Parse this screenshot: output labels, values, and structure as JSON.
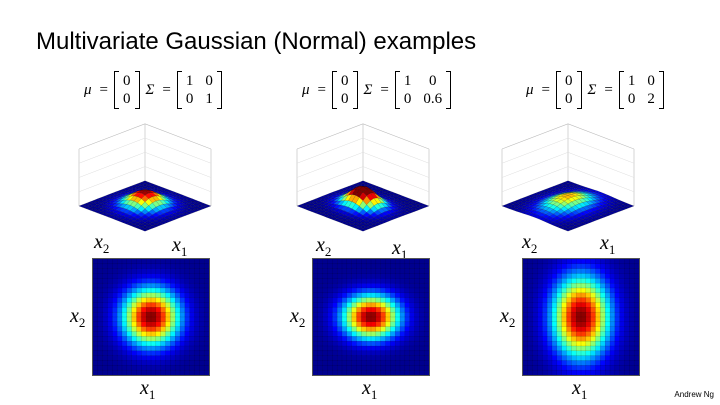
{
  "slide": {
    "title": "Multivariate Gaussian (Normal) examples",
    "credit": "Andrew Ng"
  },
  "axis_labels": {
    "x1": "x",
    "x1_sub": "1",
    "x2": "x",
    "x2_sub": "2"
  },
  "colormap": [
    "#00008f",
    "#0000ff",
    "#0080ff",
    "#00ffff",
    "#80ff80",
    "#ffff00",
    "#ff8000",
    "#ff0000",
    "#800000"
  ],
  "examples": [
    {
      "mu_symbol": "μ",
      "eq": "=",
      "sigma_symbol": "Σ",
      "mu": [
        "0",
        "0"
      ],
      "sigma": [
        [
          "1",
          "0"
        ],
        [
          "0",
          "1"
        ]
      ],
      "sx": 1,
      "sy": 1
    },
    {
      "mu_symbol": "μ",
      "eq": "=",
      "sigma_symbol": "Σ",
      "mu": [
        "0",
        "0"
      ],
      "sigma": [
        [
          "1",
          "0"
        ],
        [
          "0",
          "0.6"
        ]
      ],
      "sx": 1,
      "sy": 0.6
    },
    {
      "mu_symbol": "μ",
      "eq": "=",
      "sigma_symbol": "Σ",
      "mu": [
        "0",
        "0"
      ],
      "sigma": [
        [
          "1",
          "0"
        ],
        [
          "0",
          "2"
        ]
      ],
      "sx": 1,
      "sy": 2
    }
  ]
}
